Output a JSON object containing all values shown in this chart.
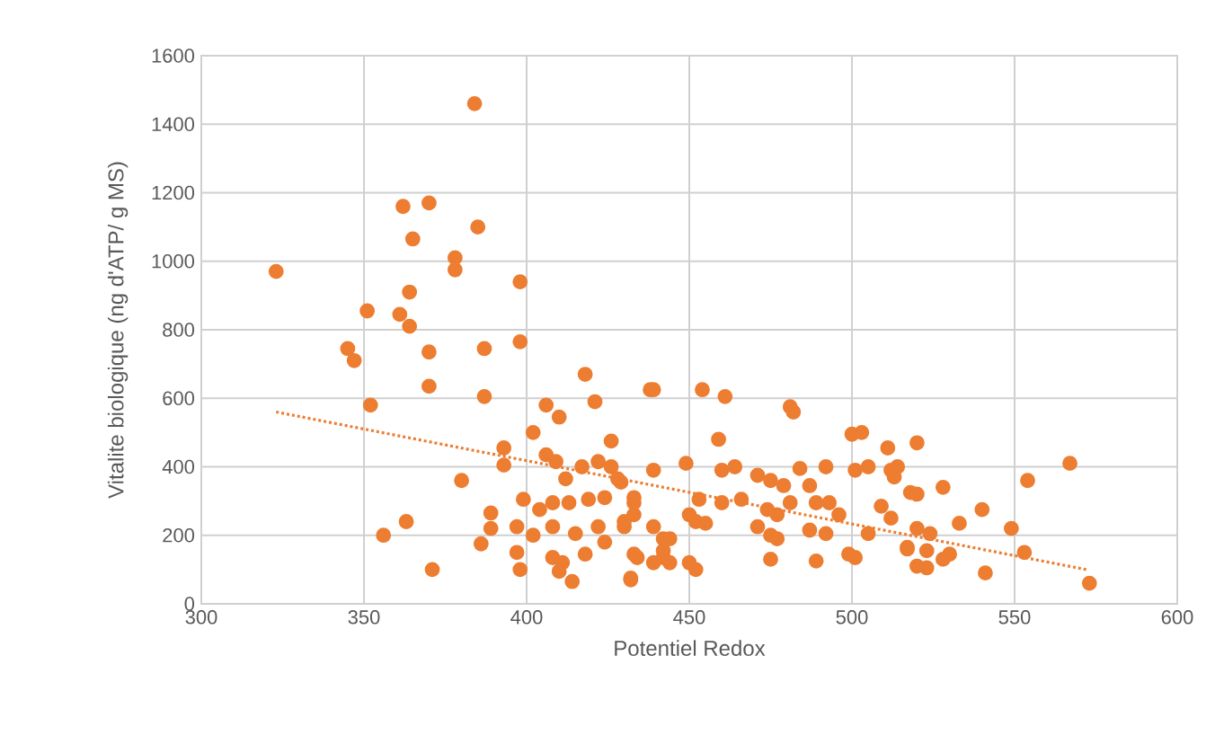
{
  "chart_data": {
    "type": "scatter",
    "xlabel": "Potentiel Redox",
    "ylabel": "Vitalite biologique (ng d'ATP/ g MS)",
    "xlim": [
      300,
      600
    ],
    "ylim": [
      0,
      1600
    ],
    "xticks": [
      300,
      350,
      400,
      450,
      500,
      550,
      600
    ],
    "yticks": [
      0,
      200,
      400,
      600,
      800,
      1000,
      1200,
      1400,
      1600
    ],
    "grid": true,
    "series": [
      {
        "color": "#ed7d31",
        "marker": "circle",
        "x": [
          323,
          384,
          362,
          370,
          365,
          385,
          378,
          378,
          398,
          351,
          364,
          361,
          364,
          345,
          347,
          370,
          387,
          398,
          370,
          387,
          352,
          418,
          421,
          406,
          410,
          402,
          426,
          393,
          393,
          380,
          356,
          363,
          371,
          386,
          389,
          389,
          397,
          398,
          414,
          432,
          438,
          439,
          454,
          461,
          481,
          482,
          459,
          500,
          503,
          511,
          520,
          449,
          439,
          460,
          464,
          471,
          475,
          479,
          484,
          487,
          492,
          501,
          505,
          512,
          513,
          518,
          453,
          460,
          466,
          474,
          477,
          481,
          489,
          493,
          496,
          509,
          512,
          450,
          452,
          455,
          471,
          475,
          477,
          487,
          492,
          505,
          517,
          433,
          439,
          442,
          444,
          450,
          452,
          475,
          489,
          499,
          501,
          520,
          523,
          432,
          428,
          433,
          433,
          430,
          439,
          442,
          444,
          442,
          514,
          520,
          528,
          540,
          533,
          549,
          554,
          567,
          520,
          524,
          517,
          523,
          530,
          528,
          541,
          553,
          573,
          406,
          409,
          412,
          417,
          422,
          426,
          429,
          399,
          404,
          408,
          413,
          419,
          424,
          397,
          402,
          408,
          415,
          422,
          430,
          433,
          408,
          411,
          418,
          424,
          434,
          410
        ],
        "values": [
          970,
          1460,
          1160,
          1170,
          1065,
          1100,
          1010,
          975,
          940,
          855,
          910,
          845,
          810,
          745,
          710,
          735,
          745,
          765,
          635,
          605,
          580,
          670,
          590,
          580,
          545,
          500,
          475,
          455,
          405,
          360,
          200,
          240,
          100,
          175,
          265,
          220,
          150,
          100,
          65,
          75,
          625,
          625,
          625,
          605,
          575,
          560,
          480,
          495,
          500,
          455,
          470,
          410,
          390,
          390,
          400,
          375,
          360,
          345,
          395,
          345,
          400,
          390,
          400,
          390,
          370,
          325,
          305,
          295,
          305,
          275,
          260,
          295,
          295,
          295,
          260,
          285,
          250,
          260,
          240,
          235,
          225,
          200,
          190,
          215,
          205,
          205,
          165,
          145,
          120,
          135,
          120,
          120,
          100,
          130,
          125,
          145,
          135,
          110,
          105,
          70,
          365,
          310,
          260,
          225,
          225,
          190,
          190,
          155,
          400,
          320,
          340,
          275,
          235,
          220,
          360,
          410,
          220,
          205,
          160,
          155,
          145,
          130,
          90,
          150,
          60,
          435,
          415,
          365,
          400,
          415,
          400,
          355,
          305,
          275,
          295,
          295,
          305,
          310,
          225,
          200,
          225,
          205,
          225,
          240,
          295,
          135,
          120,
          145,
          180,
          135,
          95
        ]
      },
      {
        "type": "line",
        "color": "#ed7d31",
        "marker": "none",
        "line_style": "dotted",
        "x": [
          323,
          572
        ],
        "values": [
          560,
          100
        ]
      }
    ]
  }
}
